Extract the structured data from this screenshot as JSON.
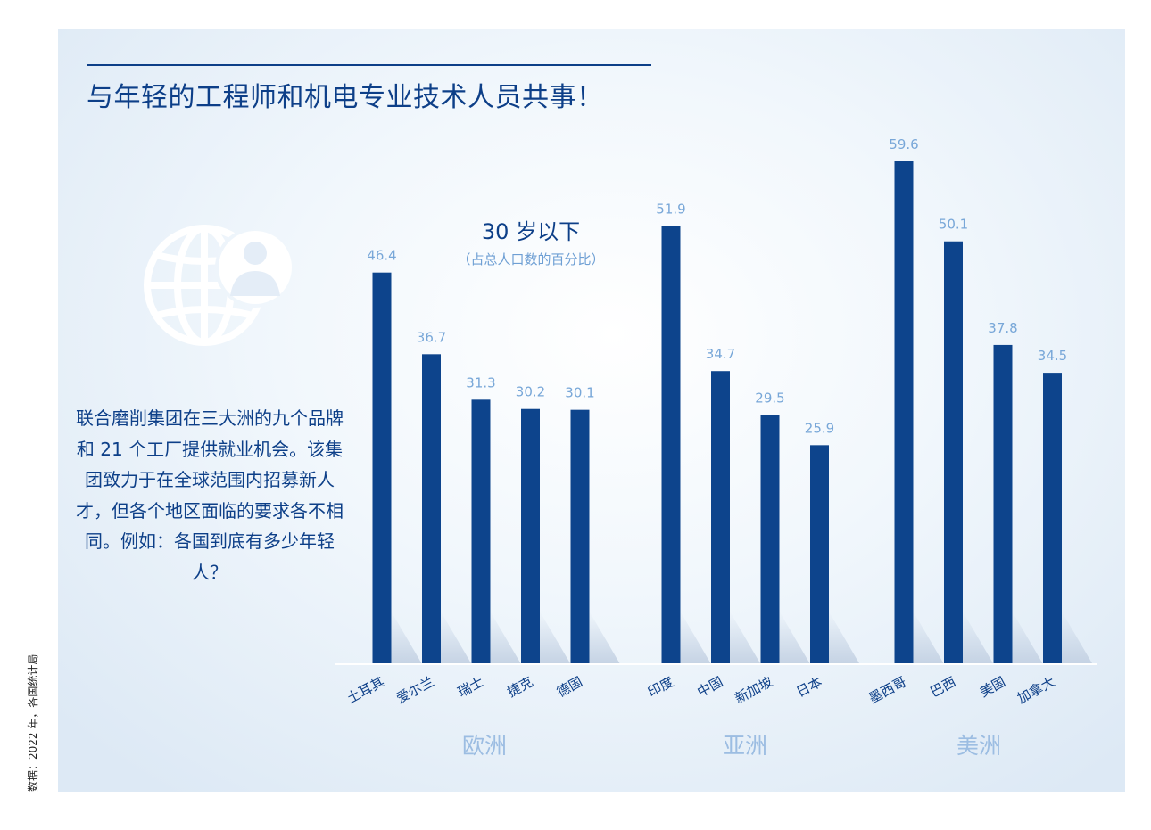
{
  "header": {
    "title": "与年轻的工程师和机电专业技术人员共事！"
  },
  "chart_subtitle": "30 岁以下",
  "chart_subtitle_note": "（占总人口数的百分比）",
  "description": "联合磨削集团在三大洲的九个品牌和 21 个工厂提供就业机会。该集团致力于在全球范围内招募新人才，但各个地区面临的要求各不相同。例如：各国到底有多少年轻人？",
  "source_note": "数据：2022 年，各国统计局",
  "icons": {
    "globe": "globe-person-icon"
  },
  "colors": {
    "bar": "#0d448c",
    "value_label": "#78a7d8",
    "group_label": "#9cbde2",
    "text": "#0d3f88"
  },
  "chart_data": {
    "type": "bar",
    "title": "30 岁以下",
    "subtitle": "（占总人口数的百分比）",
    "unit": "%",
    "ylim": [
      0,
      60
    ],
    "grid": false,
    "legend": "none",
    "groups": [
      {
        "name": "欧洲",
        "categories": [
          "土耳其",
          "爱尔兰",
          "瑞士",
          "捷克",
          "德国"
        ],
        "values": [
          46.4,
          36.7,
          31.3,
          30.2,
          30.1
        ]
      },
      {
        "name": "亚洲",
        "categories": [
          "印度",
          "中国",
          "新加坡",
          "日本"
        ],
        "values": [
          51.9,
          34.7,
          29.5,
          25.9
        ]
      },
      {
        "name": "美洲",
        "categories": [
          "墨西哥",
          "巴西",
          "美国",
          "加拿大"
        ],
        "values": [
          59.6,
          50.1,
          37.8,
          34.5
        ]
      }
    ]
  }
}
